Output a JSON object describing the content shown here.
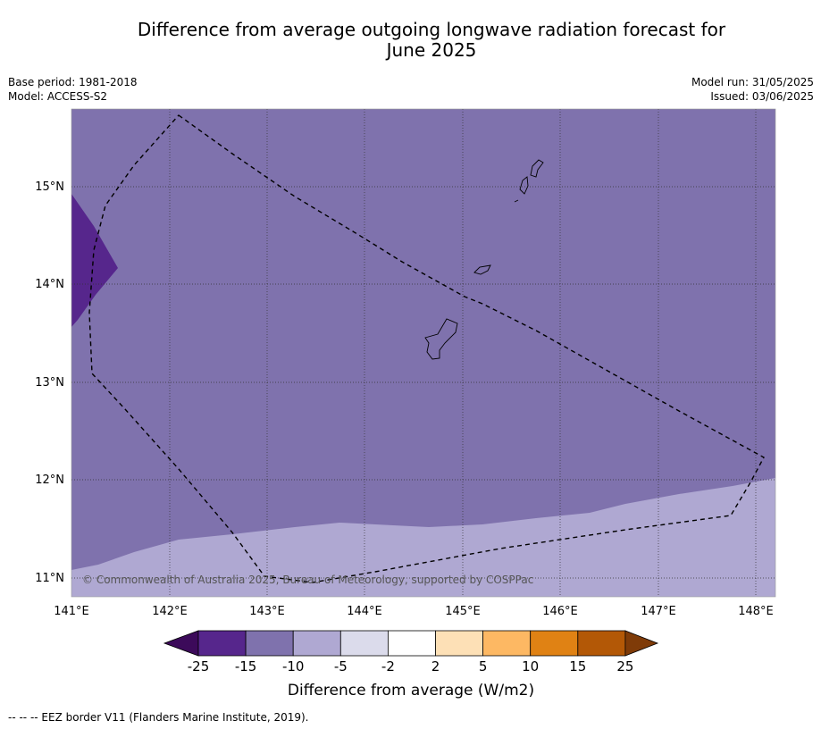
{
  "title_line1": "Difference from average outgoing longwave radiation forecast for",
  "title_line2": "June 2025",
  "base_period": "Base period: 1981-2018",
  "model": "Model: ACCESS-S2",
  "model_run": "Model run: 31/05/2025",
  "issued": "Issued: 03/06/2025",
  "copyright": "© Commonwealth of Australia 2025, Bureau of Meteorology, supported by COSPPac",
  "lon_ticks": [
    "141°E",
    "142°E",
    "143°E",
    "144°E",
    "145°E",
    "146°E",
    "147°E",
    "148°E"
  ],
  "lat_ticks": [
    "15°N",
    "14°N",
    "13°N",
    "12°N",
    "11°N"
  ],
  "lon_range": [
    141,
    148.2
  ],
  "lat_range": [
    10.8,
    15.8
  ],
  "colorbar": {
    "ticks": [
      "-25",
      "-15",
      "-10",
      "-5",
      "-2",
      "2",
      "5",
      "10",
      "15",
      "25"
    ],
    "colors": [
      "#3c0a5a",
      "#56268c",
      "#7f72ad",
      "#afa8d2",
      "#dbdbeb",
      "#ffffff",
      "#fde0b6",
      "#fdb863",
      "#e08214",
      "#b35806",
      "#7f3b08"
    ],
    "label": "Difference from average (W/m2)"
  },
  "footnote": "--  --  -- EEZ border V11 (Flanders Marine Institute, 2019).",
  "legend_colors": {
    "minus_15_to_10": "#7f72ad",
    "minus_25_to_15": "#56268c",
    "minus_10_to_5": "#afa8d2"
  }
}
